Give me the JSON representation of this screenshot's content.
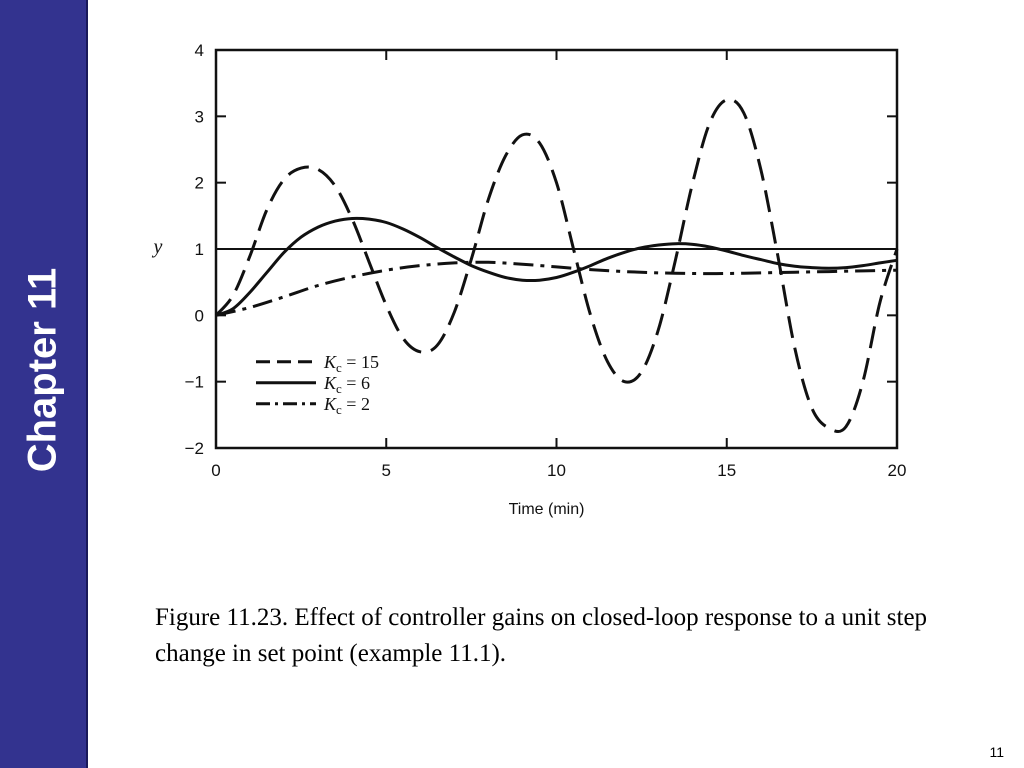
{
  "sidebar": {
    "title": "Chapter 11",
    "color": "#33338f"
  },
  "caption": "Figure 11.23. Effect of controller gains on closed-loop response to a unit step change in set point (example 11.1).",
  "page_number": "11",
  "chart_data": {
    "type": "line",
    "title": "",
    "xlabel": "Time (min)",
    "ylabel": "y",
    "xlim": [
      0,
      20
    ],
    "ylim": [
      -2,
      4
    ],
    "xticks": [
      0,
      5,
      10,
      15,
      20
    ],
    "yticks": [
      -2,
      -1,
      0,
      1,
      2,
      3,
      4
    ],
    "ytick_labels": [
      "−2",
      "−1",
      "0",
      "1",
      "2",
      "3",
      "4"
    ],
    "grid": false,
    "legend_position": "lower-left",
    "setpoint": 1,
    "series": [
      {
        "name": "Kc = 15",
        "label_prefix": "K",
        "label_sub": "c",
        "label_suffix": " = 15",
        "style": "dashed",
        "x": [
          0,
          0.5,
          1,
          1.5,
          2,
          2.5,
          3,
          3.5,
          4,
          4.5,
          5,
          5.5,
          6,
          6.5,
          7,
          7.5,
          8,
          8.5,
          9,
          9.5,
          10,
          10.5,
          11,
          11.5,
          12,
          12.5,
          13,
          13.5,
          14,
          14.5,
          15,
          15.5,
          16,
          16.5,
          17,
          17.5,
          18,
          18.5,
          19,
          19.5,
          20
        ],
        "y": [
          0,
          0.3,
          0.9,
          1.6,
          2.05,
          2.22,
          2.2,
          1.95,
          1.45,
          0.8,
          0.15,
          -0.35,
          -0.55,
          -0.45,
          0.05,
          0.85,
          1.75,
          2.4,
          2.72,
          2.6,
          2.0,
          1.0,
          0.0,
          -0.7,
          -1.0,
          -0.85,
          -0.2,
          0.85,
          2.0,
          2.9,
          3.25,
          3.05,
          2.2,
          0.9,
          -0.5,
          -1.4,
          -1.7,
          -1.68,
          -1.0,
          0.2,
          1.0
        ]
      },
      {
        "name": "Kc = 6",
        "label_prefix": "K",
        "label_sub": "c",
        "label_suffix": " = 6",
        "style": "solid",
        "x": [
          0,
          0.5,
          1,
          1.5,
          2,
          2.5,
          3,
          3.5,
          4,
          4.5,
          5,
          5.5,
          6,
          6.5,
          7,
          7.5,
          8,
          8.5,
          9,
          9.5,
          10,
          10.5,
          11,
          11.5,
          12,
          12.5,
          13,
          13.5,
          14,
          14.5,
          15,
          15.5,
          16,
          16.5,
          17,
          17.5,
          18,
          18.5,
          19,
          19.5,
          20
        ],
        "y": [
          0,
          0.1,
          0.35,
          0.65,
          0.95,
          1.18,
          1.33,
          1.42,
          1.46,
          1.45,
          1.4,
          1.3,
          1.17,
          1.02,
          0.88,
          0.75,
          0.65,
          0.57,
          0.53,
          0.53,
          0.57,
          0.65,
          0.75,
          0.86,
          0.95,
          1.02,
          1.06,
          1.08,
          1.07,
          1.03,
          0.97,
          0.9,
          0.84,
          0.78,
          0.74,
          0.72,
          0.71,
          0.72,
          0.75,
          0.79,
          0.83
        ]
      },
      {
        "name": "Kc = 2",
        "label_prefix": "K",
        "label_sub": "c",
        "label_suffix": " = 2",
        "style": "dashdot",
        "x": [
          0,
          1,
          2,
          3,
          4,
          5,
          6,
          7,
          8,
          9,
          10,
          11,
          12,
          13,
          14,
          15,
          16,
          17,
          18,
          19,
          20
        ],
        "y": [
          0,
          0.12,
          0.28,
          0.45,
          0.58,
          0.68,
          0.75,
          0.79,
          0.8,
          0.77,
          0.73,
          0.69,
          0.66,
          0.64,
          0.63,
          0.63,
          0.64,
          0.65,
          0.66,
          0.67,
          0.68
        ]
      }
    ]
  }
}
